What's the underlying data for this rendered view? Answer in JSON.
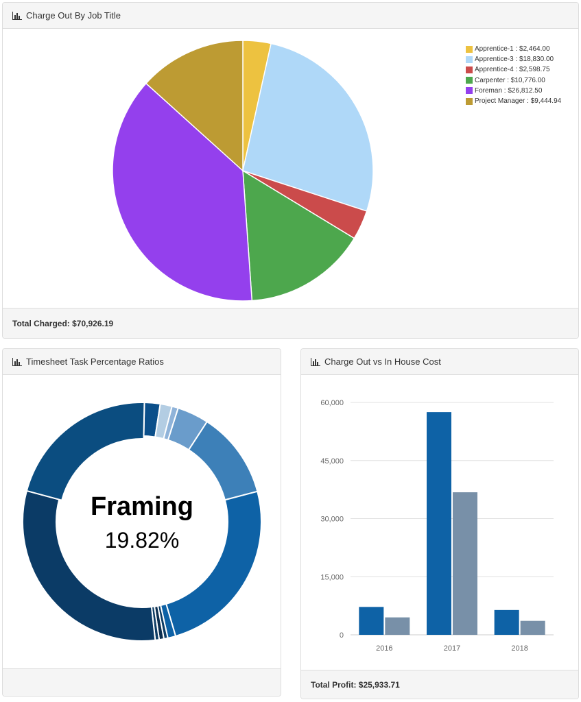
{
  "pie_panel": {
    "title": "Charge Out By Job Title",
    "footer": "Total Charged: $70,926.19",
    "chart_data": {
      "type": "pie",
      "title": "",
      "labels": [
        "Apprentice-1",
        "Apprentice-3",
        "Apprentice-4",
        "Carpenter",
        "Foreman",
        "Project Manager"
      ],
      "values": [
        2464.0,
        18830.0,
        2598.75,
        10776.0,
        26812.5,
        9444.94
      ],
      "legend_text": [
        "Apprentice-1 : $2,464.00",
        "Apprentice-3 : $18,830.00",
        "Apprentice-4 : $2,598.75",
        "Carpenter : $10,776.00",
        "Foreman : $26,812.50",
        "Project Manager : $9,444.94"
      ],
      "colors": [
        "#edc240",
        "#afd8f8",
        "#cb4b4b",
        "#4da74d",
        "#9440ed",
        "#bd9b33"
      ],
      "legend_position": "top-right"
    }
  },
  "donut_panel": {
    "title": "Timesheet Task Percentage Ratios",
    "center_label": "Framing",
    "center_value": "19.82%",
    "chart_data": {
      "type": "pie",
      "style": "donut",
      "highlighted": "Framing",
      "values": [
        2.0,
        1.5,
        0.8,
        4.0,
        11.0,
        23.0,
        1.0,
        0.5,
        0.6,
        0.5,
        29.0,
        19.82
      ],
      "colors": [
        "#0b4f8a",
        "#b3cde3",
        "#8fb3d9",
        "#6a9ccb",
        "#3d80b8",
        "#0e62a6",
        "#0e62a6",
        "#0d3c64",
        "#0b2e4f",
        "#0d3c64",
        "#0b3b66",
        "#0b4d80"
      ]
    }
  },
  "bar_panel": {
    "title": "Charge Out vs In House Cost",
    "footer": "Total Profit: $25,933.71",
    "chart_data": {
      "type": "bar",
      "categories": [
        "2016",
        "2017",
        "2018"
      ],
      "series": [
        {
          "values": [
            7200,
            57500,
            6400
          ],
          "color": "#0e62a6"
        },
        {
          "values": [
            4500,
            36800,
            3600
          ],
          "color": "#7890a8"
        }
      ],
      "yticks": [
        "0",
        "15,000",
        "30,000",
        "45,000",
        "60,000"
      ],
      "ylim": [
        0,
        60000
      ],
      "grid": true
    }
  }
}
